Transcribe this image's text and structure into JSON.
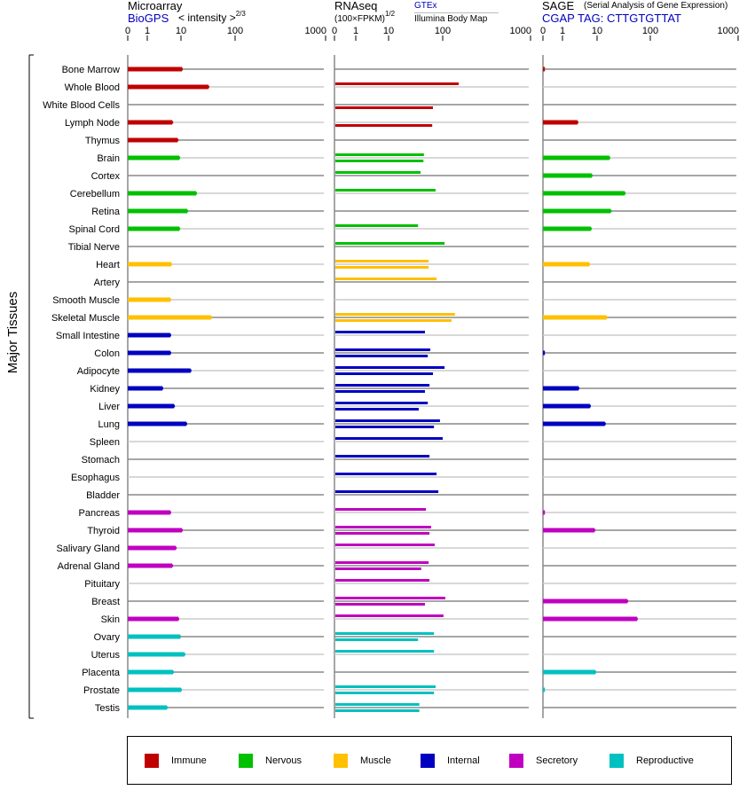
{
  "headers": {
    "microarray": {
      "title": "Microarray",
      "source_link": "BioGPS",
      "scale_label": "< intensity >",
      "scale_exponent": "2/3"
    },
    "rnaseq": {
      "title": "RNAseq",
      "scale_label": "(100×FPKM)",
      "scale_exponent": "1/2",
      "source_gtex": "GTEx",
      "source_illumina": "Illumina Body Map"
    },
    "sage": {
      "title": "SAGE",
      "subtitle": "(Serial Analysis of Gene Expression)",
      "tag": "CGAP TAG: CTTGTGTTAT"
    }
  },
  "y_axis_label": "Major Tissues",
  "legend": [
    {
      "label": "Immune",
      "color": "#c00000"
    },
    {
      "label": "Nervous",
      "color": "#00c000"
    },
    {
      "label": "Muscle",
      "color": "#ffc000"
    },
    {
      "label": "Internal",
      "color": "#0000c0"
    },
    {
      "label": "Secretory",
      "color": "#c000c0"
    },
    {
      "label": "Reproductive",
      "color": "#00c0c0"
    }
  ],
  "chart_data": {
    "type": "bar",
    "orientation": "horizontal",
    "x_ticks": [
      "0",
      "1",
      "10",
      "100",
      "1000"
    ],
    "x_tick_values": [
      0,
      1,
      10,
      100,
      1000
    ],
    "grid": true,
    "legend_position": "bottom",
    "panels": [
      "microarray",
      "rnaseq",
      "sage"
    ],
    "rnaseq_series": [
      "GTEx",
      "Illumina Body Map"
    ],
    "categories": [
      "Bone Marrow",
      "Whole Blood",
      "White Blood Cells",
      "Lymph Node",
      "Thymus",
      "Brain",
      "Cortex",
      "Cerebellum",
      "Retina",
      "Spinal Cord",
      "Tibial Nerve",
      "Heart",
      "Artery",
      "Smooth Muscle",
      "Skeletal Muscle",
      "Small Intestine",
      "Colon",
      "Adipocyte",
      "Kidney",
      "Liver",
      "Lung",
      "Spleen",
      "Stomach",
      "Esophagus",
      "Bladder",
      "Pancreas",
      "Thyroid",
      "Salivary Gland",
      "Adrenal Gland",
      "Pituitary",
      "Breast",
      "Skin",
      "Ovary",
      "Uterus",
      "Placenta",
      "Prostate",
      "Testis"
    ],
    "groups": [
      "Immune",
      "Immune",
      "Immune",
      "Immune",
      "Immune",
      "Nervous",
      "Nervous",
      "Nervous",
      "Nervous",
      "Nervous",
      "Nervous",
      "Muscle",
      "Muscle",
      "Muscle",
      "Muscle",
      "Internal",
      "Internal",
      "Internal",
      "Internal",
      "Internal",
      "Internal",
      "Internal",
      "Internal",
      "Internal",
      "Internal",
      "Secretory",
      "Secretory",
      "Secretory",
      "Secretory",
      "Secretory",
      "Secretory",
      "Secretory",
      "Reproductive",
      "Reproductive",
      "Reproductive",
      "Reproductive",
      "Reproductive"
    ],
    "series": [
      {
        "name": "Microarray",
        "values": [
          10.4,
          32,
          null,
          5.5,
          7.9,
          8.9,
          null,
          19,
          13,
          8.9,
          null,
          5.1,
          null,
          4.8,
          36,
          4.8,
          4.8,
          15,
          2.8,
          6.2,
          12.5,
          null,
          null,
          null,
          null,
          4.8,
          10.4,
          7.0,
          5.5,
          null,
          null,
          8.3,
          9.4,
          11.6,
          5.8,
          10,
          3.8
        ]
      },
      {
        "name": "GTEx",
        "values": [
          null,
          152,
          null,
          null,
          null,
          45,
          39,
          74,
          null,
          35,
          105,
          55,
          77,
          null,
          138,
          47,
          59,
          105,
          57,
          53,
          89,
          100,
          57,
          77,
          83,
          49,
          61,
          71,
          55,
          57,
          107,
          102,
          69,
          69,
          null,
          74,
          37
        ]
      },
      {
        "name": "Illumina Body Map",
        "values": [
          null,
          null,
          66,
          64,
          null,
          44,
          null,
          null,
          null,
          null,
          null,
          55,
          null,
          null,
          126,
          null,
          53,
          66,
          47,
          36,
          69,
          null,
          null,
          null,
          null,
          null,
          57,
          null,
          40,
          null,
          47,
          null,
          35,
          null,
          null,
          69,
          37
        ]
      },
      {
        "name": "SAGE",
        "values": [
          0.1,
          null,
          null,
          2.7,
          null,
          17,
          7.0,
          33,
          18,
          6.6,
          null,
          5.9,
          null,
          null,
          15,
          null,
          0.1,
          null,
          2.9,
          6.2,
          14,
          null,
          null,
          null,
          null,
          0.1,
          8.4,
          null,
          null,
          null,
          37,
          56,
          null,
          null,
          8.9,
          0.1,
          null
        ]
      }
    ]
  }
}
